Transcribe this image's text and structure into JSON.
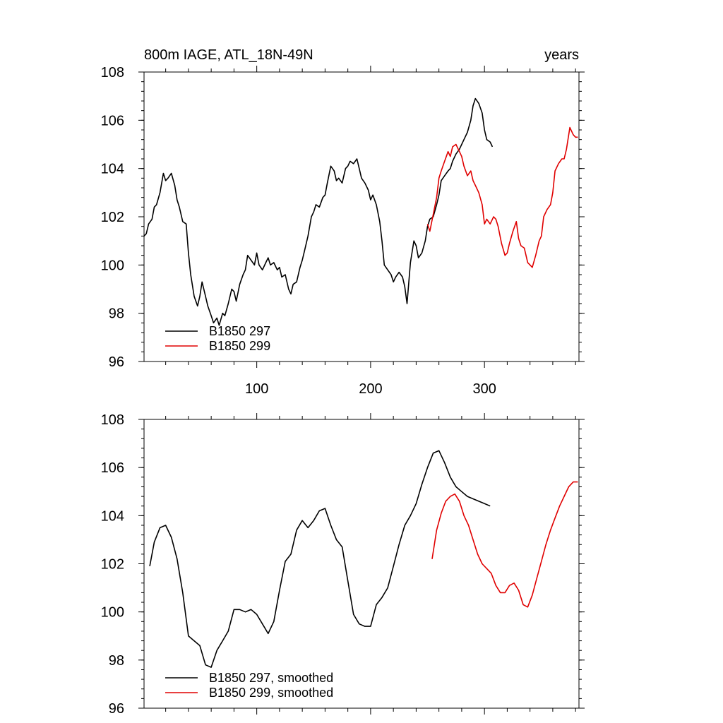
{
  "chart_data": [
    {
      "type": "line",
      "title": "800m IAGE, ATL_18N-49N",
      "title_right": "years",
      "xlim": [
        1,
        383
      ],
      "ylim": [
        96,
        108
      ],
      "xticks": [
        100,
        200,
        300
      ],
      "yticks": [
        96,
        98,
        100,
        102,
        104,
        106,
        108
      ],
      "legend_position": "bottom-left",
      "grid": false,
      "series": [
        {
          "name": "B1850 297",
          "color": "#000000",
          "x": [
            1,
            3,
            5,
            8,
            10,
            12,
            15,
            18,
            20,
            22,
            25,
            28,
            30,
            32,
            35,
            38,
            40,
            42,
            45,
            48,
            50,
            52,
            55,
            57,
            60,
            62,
            65,
            67,
            70,
            72,
            75,
            78,
            80,
            82,
            85,
            88,
            90,
            92,
            95,
            98,
            100,
            102,
            105,
            108,
            110,
            112,
            115,
            118,
            120,
            122,
            125,
            128,
            130,
            132,
            135,
            138,
            140,
            142,
            145,
            148,
            150,
            152,
            155,
            158,
            160,
            162,
            165,
            168,
            170,
            172,
            175,
            178,
            180,
            182,
            185,
            188,
            190,
            192,
            195,
            198,
            200,
            202,
            205,
            208,
            210,
            212,
            215,
            218,
            220,
            222,
            225,
            228,
            230,
            232,
            235,
            238,
            240,
            242,
            245,
            248,
            250,
            252,
            255,
            258,
            260,
            262,
            265,
            268,
            270,
            272,
            275,
            278,
            280,
            282,
            285,
            288,
            290,
            292,
            295,
            298,
            300,
            302,
            305,
            307
          ],
          "y": [
            101.2,
            101.3,
            101.7,
            101.9,
            102.4,
            102.5,
            103.0,
            103.8,
            103.5,
            103.6,
            103.8,
            103.3,
            102.7,
            102.4,
            101.8,
            101.7,
            100.5,
            99.6,
            98.7,
            98.3,
            98.7,
            99.3,
            98.7,
            98.3,
            97.9,
            97.6,
            97.8,
            97.5,
            98.0,
            97.9,
            98.4,
            99.0,
            98.9,
            98.5,
            99.2,
            99.6,
            99.8,
            100.4,
            100.2,
            100.0,
            100.5,
            100.0,
            99.8,
            100.1,
            100.3,
            100.0,
            100.1,
            99.8,
            99.9,
            99.5,
            99.6,
            99.0,
            98.8,
            99.2,
            99.3,
            99.9,
            100.2,
            100.6,
            101.2,
            102.0,
            102.2,
            102.5,
            102.4,
            102.8,
            102.9,
            103.4,
            104.1,
            103.9,
            103.5,
            103.6,
            103.4,
            104.0,
            104.1,
            104.3,
            104.2,
            104.4,
            104.0,
            103.6,
            103.4,
            103.1,
            102.7,
            102.9,
            102.5,
            101.8,
            101.0,
            100.0,
            99.8,
            99.6,
            99.3,
            99.5,
            99.7,
            99.5,
            99.1,
            98.4,
            100.1,
            101.0,
            100.8,
            100.3,
            100.5,
            101.0,
            101.6,
            101.9,
            102.0,
            102.5,
            102.9,
            103.5,
            103.7,
            103.9,
            104.0,
            104.3,
            104.6,
            104.8,
            105.0,
            105.2,
            105.5,
            106.0,
            106.6,
            106.9,
            106.7,
            106.3,
            105.6,
            105.2,
            105.1,
            104.9
          ]
        },
        {
          "name": "B1850 299",
          "color": "#e00000",
          "x": [
            250,
            252,
            255,
            258,
            260,
            262,
            265,
            268,
            270,
            272,
            275,
            278,
            280,
            282,
            285,
            288,
            290,
            292,
            295,
            298,
            300,
            302,
            305,
            308,
            310,
            312,
            315,
            318,
            320,
            322,
            325,
            328,
            330,
            332,
            335,
            338,
            340,
            342,
            345,
            348,
            350,
            352,
            355,
            358,
            360,
            362,
            365,
            368,
            370,
            372,
            375,
            378,
            380,
            382
          ],
          "y": [
            101.7,
            101.4,
            102.1,
            102.8,
            103.6,
            103.9,
            104.3,
            104.7,
            104.5,
            104.9,
            105.0,
            104.7,
            104.5,
            104.1,
            103.7,
            103.9,
            103.5,
            103.3,
            103.0,
            102.5,
            101.7,
            101.9,
            101.7,
            102.0,
            101.9,
            101.6,
            100.9,
            100.4,
            100.5,
            100.9,
            101.4,
            101.8,
            101.1,
            100.8,
            100.7,
            100.1,
            100.0,
            99.9,
            100.4,
            101.0,
            101.2,
            102.0,
            102.3,
            102.5,
            103.0,
            103.9,
            104.2,
            104.4,
            104.4,
            104.8,
            105.7,
            105.4,
            105.3,
            105.3
          ]
        }
      ]
    },
    {
      "type": "line",
      "xlim": [
        1,
        383
      ],
      "ylim": [
        96,
        108
      ],
      "yticks": [
        96,
        98,
        100,
        102,
        104,
        106,
        108
      ],
      "legend_position": "bottom-left",
      "grid": false,
      "series": [
        {
          "name": "B1850 297, smoothed",
          "color": "#000000",
          "x": [
            6,
            10,
            15,
            20,
            25,
            30,
            35,
            40,
            45,
            50,
            55,
            60,
            65,
            70,
            75,
            80,
            85,
            90,
            95,
            100,
            105,
            110,
            115,
            120,
            125,
            130,
            135,
            140,
            145,
            150,
            155,
            160,
            165,
            170,
            175,
            180,
            185,
            190,
            195,
            200,
            205,
            210,
            215,
            220,
            225,
            230,
            235,
            240,
            245,
            250,
            255,
            260,
            265,
            270,
            275,
            280,
            285,
            290,
            295,
            300,
            305
          ],
          "y": [
            101.9,
            102.9,
            103.5,
            103.6,
            103.1,
            102.2,
            100.8,
            99.0,
            98.8,
            98.6,
            97.8,
            97.7,
            98.4,
            98.8,
            99.2,
            100.1,
            100.1,
            100.0,
            100.1,
            99.9,
            99.5,
            99.1,
            99.6,
            100.9,
            102.1,
            102.4,
            103.4,
            103.8,
            103.5,
            103.8,
            104.2,
            104.3,
            103.6,
            103.0,
            102.7,
            101.3,
            99.9,
            99.5,
            99.4,
            99.4,
            100.3,
            100.6,
            101.0,
            101.9,
            102.8,
            103.6,
            104.0,
            104.5,
            105.3,
            106.0,
            106.6,
            106.7,
            106.2,
            105.6,
            105.2,
            105.0,
            104.8,
            104.7,
            104.6,
            104.5,
            104.4
          ]
        },
        {
          "name": "B1850 299, smoothed",
          "color": "#e00000",
          "x": [
            254,
            258,
            262,
            266,
            270,
            274,
            278,
            282,
            286,
            290,
            294,
            298,
            302,
            306,
            310,
            314,
            318,
            322,
            326,
            330,
            334,
            338,
            342,
            346,
            350,
            354,
            358,
            362,
            366,
            370,
            374,
            378,
            382
          ],
          "y": [
            102.2,
            103.4,
            104.1,
            104.6,
            104.8,
            104.9,
            104.6,
            104.0,
            103.6,
            103.0,
            102.4,
            102.0,
            101.8,
            101.6,
            101.1,
            100.8,
            100.8,
            101.1,
            101.2,
            100.9,
            100.3,
            100.2,
            100.7,
            101.4,
            102.1,
            102.8,
            103.4,
            103.9,
            104.4,
            104.8,
            105.2,
            105.4,
            105.4
          ]
        }
      ]
    }
  ]
}
